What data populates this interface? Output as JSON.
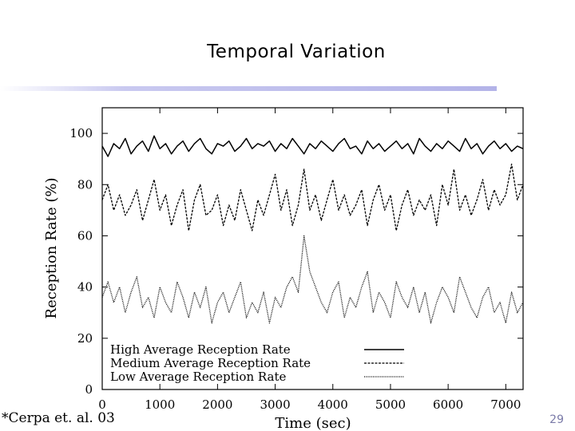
{
  "slide": {
    "title": "Temporal Variation",
    "citation": "*Cerpa et. al. 03",
    "page_number": "29"
  },
  "chart_data": {
    "type": "line",
    "title": "",
    "xlabel": "Time (sec)",
    "ylabel": "Reception Rate (%)",
    "xlim": [
      0,
      7300
    ],
    "ylim": [
      0,
      110
    ],
    "xticks": [
      0,
      1000,
      2000,
      3000,
      4000,
      5000,
      6000,
      7000
    ],
    "yticks": [
      0,
      20,
      40,
      60,
      80,
      100
    ],
    "legend_position": "bottom-center",
    "grid": false,
    "series": [
      {
        "name": "High Average Reception Rate",
        "style": "solid",
        "x": [
          0,
          100,
          200,
          300,
          400,
          500,
          600,
          700,
          800,
          900,
          1000,
          1100,
          1200,
          1300,
          1400,
          1500,
          1600,
          1700,
          1800,
          1900,
          2000,
          2100,
          2200,
          2300,
          2400,
          2500,
          2600,
          2700,
          2800,
          2900,
          3000,
          3100,
          3200,
          3300,
          3400,
          3500,
          3600,
          3700,
          3800,
          3900,
          4000,
          4100,
          4200,
          4300,
          4400,
          4500,
          4600,
          4700,
          4800,
          4900,
          5000,
          5100,
          5200,
          5300,
          5400,
          5500,
          5600,
          5700,
          5800,
          5900,
          6000,
          6100,
          6200,
          6300,
          6400,
          6500,
          6600,
          6700,
          6800,
          6900,
          7000,
          7100,
          7200,
          7300
        ],
        "values": [
          95,
          91,
          96,
          94,
          98,
          92,
          95,
          97,
          93,
          99,
          94,
          96,
          92,
          95,
          97,
          93,
          96,
          98,
          94,
          92,
          96,
          95,
          97,
          93,
          95,
          98,
          94,
          96,
          95,
          97,
          93,
          96,
          94,
          98,
          95,
          92,
          96,
          94,
          97,
          95,
          93,
          96,
          98,
          94,
          95,
          92,
          97,
          94,
          96,
          93,
          95,
          97,
          94,
          96,
          92,
          98,
          95,
          93,
          96,
          94,
          97,
          95,
          93,
          98,
          94,
          96,
          92,
          95,
          97,
          94,
          96,
          93,
          95,
          94
        ]
      },
      {
        "name": "Medium Average Reception Rate",
        "style": "dashed",
        "x": [
          0,
          100,
          200,
          300,
          400,
          500,
          600,
          700,
          800,
          900,
          1000,
          1100,
          1200,
          1300,
          1400,
          1500,
          1600,
          1700,
          1800,
          1900,
          2000,
          2100,
          2200,
          2300,
          2400,
          2500,
          2600,
          2700,
          2800,
          2900,
          3000,
          3100,
          3200,
          3300,
          3400,
          3500,
          3600,
          3700,
          3800,
          3900,
          4000,
          4100,
          4200,
          4300,
          4400,
          4500,
          4600,
          4700,
          4800,
          4900,
          5000,
          5100,
          5200,
          5300,
          5400,
          5500,
          5600,
          5700,
          5800,
          5900,
          6000,
          6100,
          6200,
          6300,
          6400,
          6500,
          6600,
          6700,
          6800,
          6900,
          7000,
          7100,
          7200,
          7300
        ],
        "values": [
          74,
          80,
          70,
          76,
          68,
          72,
          78,
          66,
          74,
          82,
          70,
          76,
          64,
          72,
          78,
          62,
          74,
          80,
          68,
          70,
          76,
          64,
          72,
          66,
          78,
          70,
          62,
          74,
          68,
          76,
          84,
          70,
          78,
          64,
          72,
          86,
          70,
          76,
          66,
          74,
          82,
          70,
          76,
          68,
          72,
          78,
          64,
          74,
          80,
          70,
          76,
          62,
          72,
          78,
          68,
          74,
          70,
          76,
          64,
          80,
          72,
          86,
          70,
          76,
          68,
          74,
          82,
          70,
          78,
          72,
          76,
          88,
          74,
          80
        ]
      },
      {
        "name": "Low Average Reception Rate",
        "style": "dotted",
        "x": [
          0,
          100,
          200,
          300,
          400,
          500,
          600,
          700,
          800,
          900,
          1000,
          1100,
          1200,
          1300,
          1400,
          1500,
          1600,
          1700,
          1800,
          1900,
          2000,
          2100,
          2200,
          2300,
          2400,
          2500,
          2600,
          2700,
          2800,
          2900,
          3000,
          3100,
          3200,
          3300,
          3400,
          3500,
          3600,
          3700,
          3800,
          3900,
          4000,
          4100,
          4200,
          4300,
          4400,
          4500,
          4600,
          4700,
          4800,
          4900,
          5000,
          5100,
          5200,
          5300,
          5400,
          5500,
          5600,
          5700,
          5800,
          5900,
          6000,
          6100,
          6200,
          6300,
          6400,
          6500,
          6600,
          6700,
          6800,
          6900,
          7000,
          7100,
          7200,
          7300
        ],
        "values": [
          36,
          42,
          34,
          40,
          30,
          38,
          44,
          32,
          36,
          28,
          40,
          34,
          30,
          42,
          36,
          28,
          38,
          32,
          40,
          26,
          34,
          38,
          30,
          36,
          42,
          28,
          34,
          30,
          38,
          26,
          36,
          32,
          40,
          44,
          38,
          60,
          46,
          40,
          34,
          30,
          38,
          42,
          28,
          36,
          32,
          40,
          46,
          30,
          38,
          34,
          28,
          42,
          36,
          32,
          40,
          30,
          38,
          26,
          34,
          40,
          36,
          30,
          44,
          38,
          32,
          28,
          36,
          40,
          30,
          34,
          26,
          38,
          30,
          34
        ]
      }
    ]
  }
}
